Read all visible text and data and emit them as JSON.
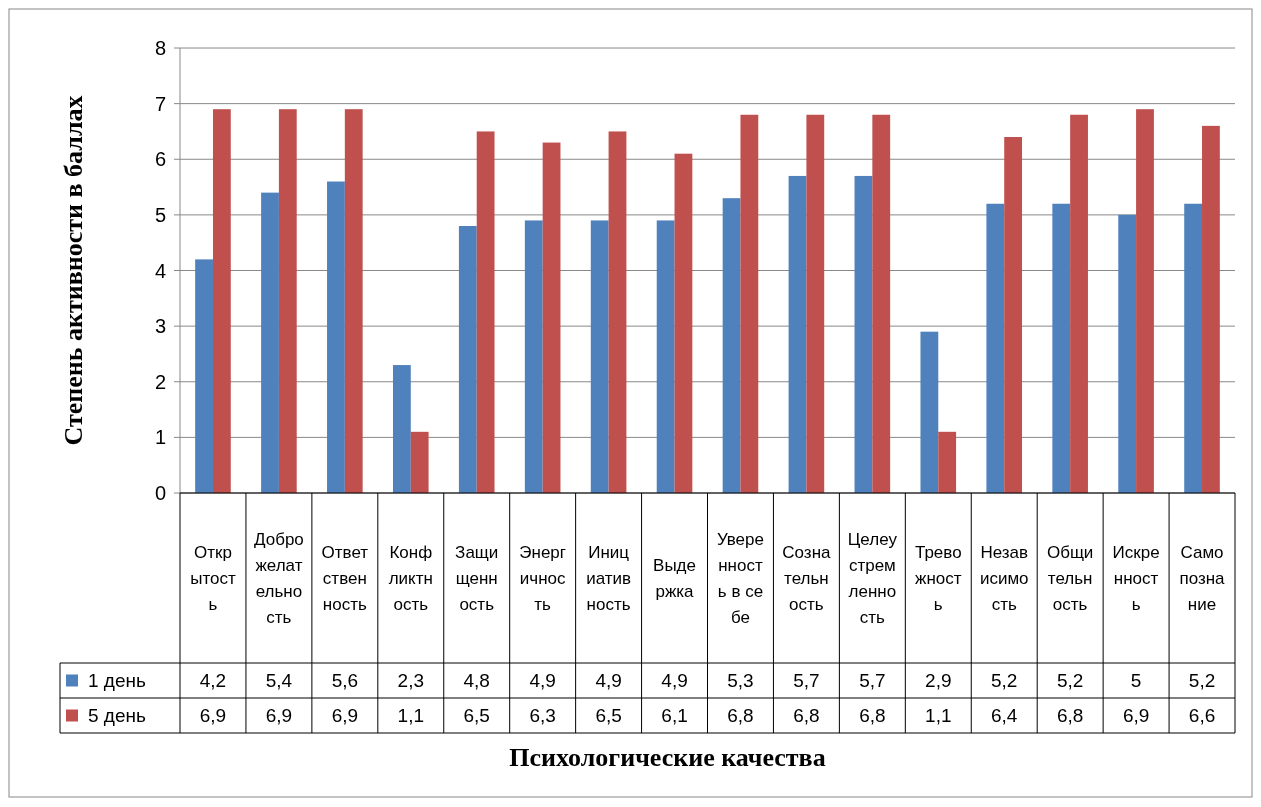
{
  "chart_data": {
    "type": "bar",
    "xlabel": "Психологические качества",
    "ylabel": "Степень активности в баллах",
    "categories": [
      "Открытость",
      "Доброжелательность",
      "Ответственность",
      "Конфликтность",
      "Защищенность",
      "Энергичность",
      "Инициативность",
      "Выдержка",
      "Уверенность в себе",
      "Сознательность",
      "Целеустремленность",
      "Тревожность",
      "Независимость",
      "Общительность",
      "Искренность",
      "Самопознание"
    ],
    "series": [
      {
        "name": "1 день",
        "color": "#4f81bd",
        "values": [
          4.2,
          5.4,
          5.6,
          2.3,
          4.8,
          4.9,
          4.9,
          4.9,
          5.3,
          5.7,
          5.7,
          2.9,
          5.2,
          5.2,
          5,
          5.2
        ],
        "value_labels": [
          "4,2",
          "5,4",
          "5,6",
          "2,3",
          "4,8",
          "4,9",
          "4,9",
          "4,9",
          "5,3",
          "5,7",
          "5,7",
          "2,9",
          "5,2",
          "5,2",
          "5",
          "5,2"
        ]
      },
      {
        "name": "5 день",
        "color": "#c0504d",
        "values": [
          6.9,
          6.9,
          6.9,
          1.1,
          6.5,
          6.3,
          6.5,
          6.1,
          6.8,
          6.8,
          6.8,
          1.1,
          6.4,
          6.8,
          6.9,
          6.6
        ],
        "value_labels": [
          "6,9",
          "6,9",
          "6,9",
          "1,1",
          "6,5",
          "6,3",
          "6,5",
          "6,1",
          "6,8",
          "6,8",
          "6,8",
          "1,1",
          "6,4",
          "6,8",
          "6,9",
          "6,6"
        ]
      }
    ],
    "ylim": [
      0,
      8
    ],
    "yticks": [
      0,
      1,
      2,
      3,
      4,
      5,
      6,
      7,
      8
    ],
    "grid": "y",
    "legend": "bottom"
  }
}
